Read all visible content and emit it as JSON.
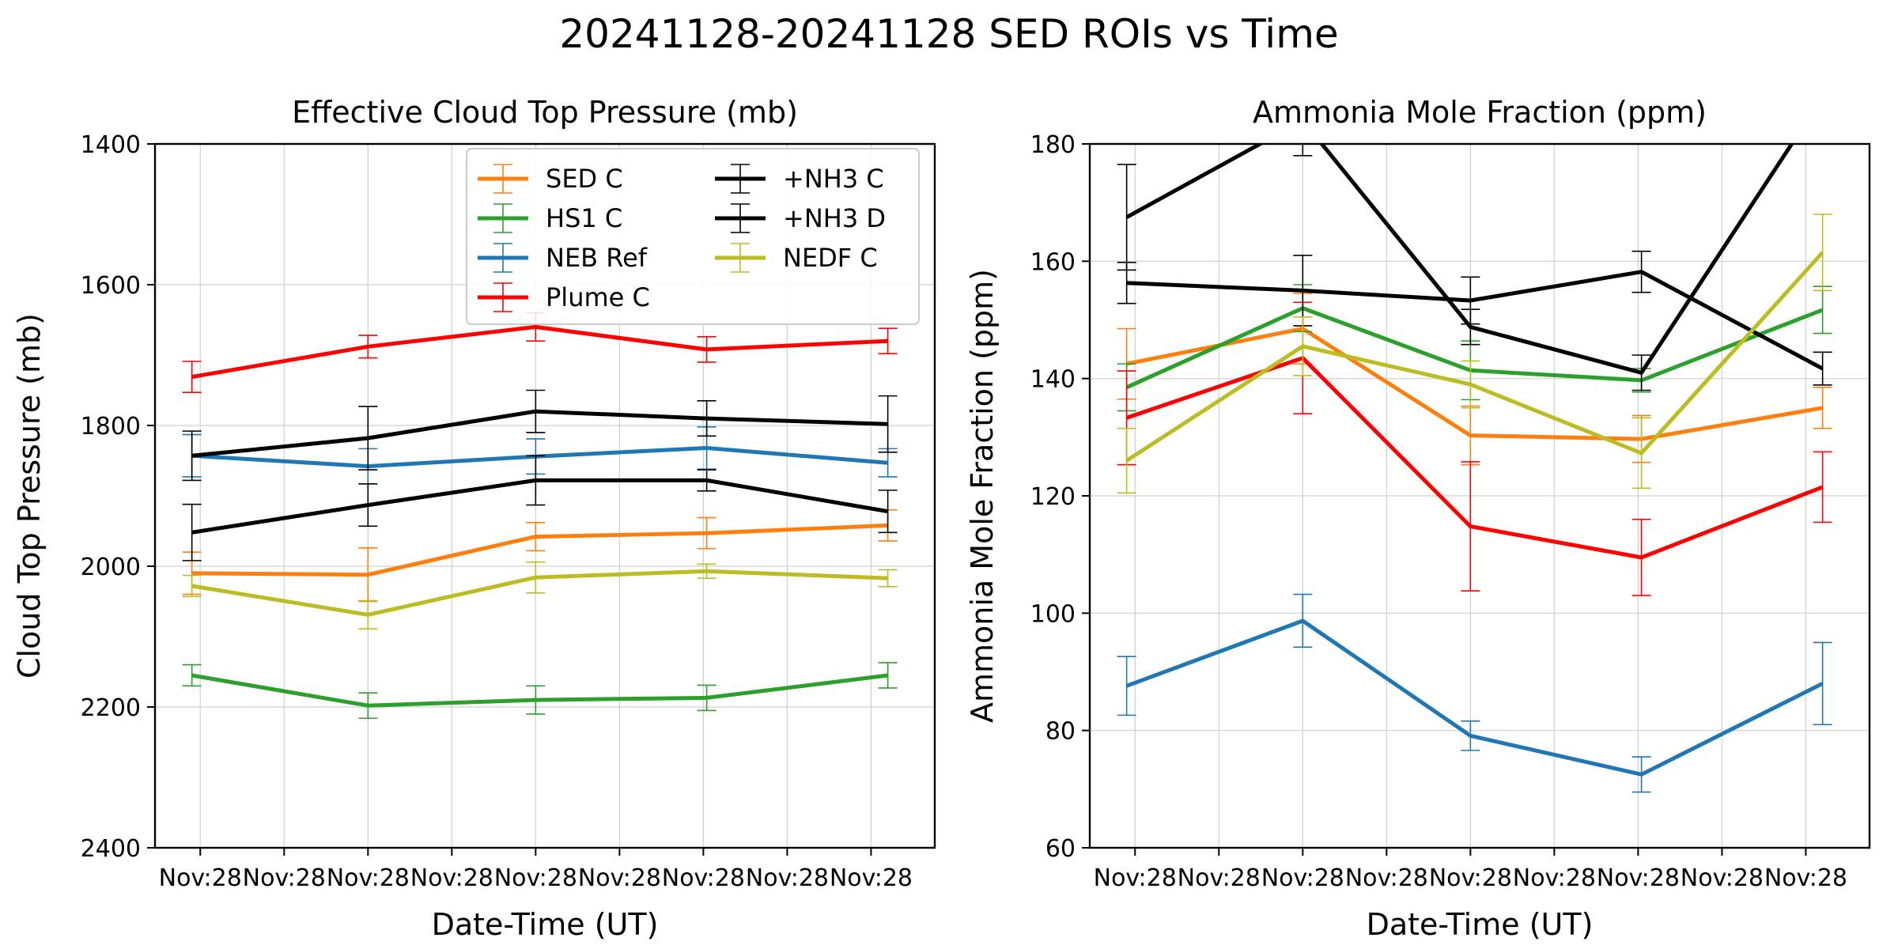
{
  "figure": {
    "title": "20241128-20241128 SED ROIs vs Time"
  },
  "legend": {
    "placement": "upper-right",
    "entries": [
      {
        "name": "SED C",
        "color": "#ff7f0e"
      },
      {
        "name": "HS1 C",
        "color": "#2ca02c"
      },
      {
        "name": "NEB Ref",
        "color": "#1f77b4"
      },
      {
        "name": "Plume C",
        "color": "#ff0000"
      },
      {
        "name": "+NH3 C",
        "color": "#000000"
      },
      {
        "name": "+NH3 D",
        "color": "#000000"
      },
      {
        "name": "NEDF C",
        "color": "#bcbd22"
      }
    ]
  },
  "chart_data": [
    {
      "type": "line",
      "title": "Effective Cloud Top Pressure (mb)",
      "xlabel": "Date-Time (UT)",
      "ylabel": "Cloud Top Pressure (mb)",
      "ylim": [
        2400,
        1400
      ],
      "y_inverted": true,
      "yticks": [
        1400,
        1600,
        1800,
        2000,
        2200,
        2400
      ],
      "xlim": [
        -0.27,
        4.38
      ],
      "xticks": [
        0,
        0.5,
        1,
        1.5,
        2,
        2.5,
        3,
        3.5,
        4
      ],
      "xticklabels": [
        "Nov:28",
        "Nov:28",
        "Nov:28",
        "Nov:28",
        "Nov:28",
        "Nov:28",
        "Nov:28",
        "Nov:28",
        "Nov:28"
      ],
      "grid": true,
      "series": [
        {
          "name": "SED C",
          "color": "#ff7f0e",
          "x": [
            -0.05,
            1.0,
            2.0,
            3.02,
            4.1
          ],
          "y": [
            2010,
            2012,
            1958,
            1953,
            1942
          ],
          "err": [
            30,
            38,
            20,
            22,
            22
          ]
        },
        {
          "name": "HS1 C",
          "color": "#2ca02c",
          "x": [
            -0.05,
            1.0,
            2.0,
            3.02,
            4.1
          ],
          "y": [
            2155,
            2198,
            2190,
            2187,
            2155
          ],
          "err": [
            15,
            18,
            20,
            18,
            18
          ]
        },
        {
          "name": "NEB Ref",
          "color": "#1f77b4",
          "x": [
            -0.05,
            1.0,
            2.0,
            3.02,
            4.1
          ],
          "y": [
            1843,
            1858,
            1844,
            1832,
            1853
          ],
          "err": [
            30,
            25,
            25,
            30,
            20
          ]
        },
        {
          "name": "Plume C",
          "color": "#ff0000",
          "x": [
            -0.05,
            1.0,
            2.0,
            3.02,
            4.1
          ],
          "y": [
            1731,
            1688,
            1660,
            1692,
            1680
          ],
          "err": [
            22,
            16,
            20,
            18,
            18
          ]
        },
        {
          "name": "+NH3 C",
          "color": "#000000",
          "x": [
            -0.05,
            1.0,
            2.0,
            3.02,
            4.1
          ],
          "y": [
            1952,
            1913,
            1878,
            1878,
            1922
          ],
          "err": [
            40,
            30,
            35,
            15,
            30
          ]
        },
        {
          "name": "+NH3 D",
          "color": "#000000",
          "x": [
            -0.05,
            1.0,
            2.0,
            3.02,
            4.1
          ],
          "y": [
            1843,
            1818,
            1780,
            1790,
            1798
          ],
          "err": [
            35,
            45,
            30,
            25,
            40
          ]
        },
        {
          "name": "NEDF C",
          "color": "#bcbd22",
          "x": [
            -0.05,
            1.0,
            2.0,
            3.02,
            4.1
          ],
          "y": [
            2028,
            2069,
            2016,
            2007,
            2017
          ],
          "err": [
            15,
            20,
            22,
            10,
            12
          ]
        }
      ]
    },
    {
      "type": "line",
      "title": "Ammonia Mole Fraction (ppm)",
      "xlabel": "Date-Time (UT)",
      "ylabel": "Ammonia Mole Fraction (ppm)",
      "ylim": [
        60,
        180
      ],
      "yticks": [
        60,
        80,
        100,
        120,
        140,
        160,
        180
      ],
      "xlim": [
        -0.27,
        4.38
      ],
      "xticks": [
        0,
        0.5,
        1,
        1.5,
        2,
        2.5,
        3,
        3.5,
        4
      ],
      "xticklabels": [
        "Nov:28",
        "Nov:28",
        "Nov:28",
        "Nov:28",
        "Nov:28",
        "Nov:28",
        "Nov:28",
        "Nov:28",
        "Nov:28"
      ],
      "grid": true,
      "series": [
        {
          "name": "SED C",
          "color": "#ff7f0e",
          "x": [
            -0.05,
            1.0,
            2.0,
            3.02,
            4.1
          ],
          "y": [
            142.5,
            148.5,
            130.3,
            129.7,
            135.0
          ],
          "err": [
            6,
            6,
            5,
            4,
            3.5
          ]
        },
        {
          "name": "HS1 C",
          "color": "#2ca02c",
          "x": [
            -0.05,
            1.0,
            2.0,
            3.02,
            4.1
          ],
          "y": [
            138.5,
            152.0,
            141.4,
            139.7,
            151.7
          ],
          "err": [
            4,
            4,
            5,
            2,
            4
          ]
        },
        {
          "name": "NEB Ref",
          "color": "#1f77b4",
          "x": [
            -0.05,
            1.0,
            2.0,
            3.02,
            4.1
          ],
          "y": [
            87.6,
            98.7,
            79.1,
            72.5,
            88.0
          ],
          "err": [
            5,
            4.5,
            2.5,
            3,
            7
          ]
        },
        {
          "name": "Plume C",
          "color": "#ff0000",
          "x": [
            -0.05,
            1.0,
            2.0,
            3.02,
            4.1
          ],
          "y": [
            133.3,
            143.5,
            114.8,
            109.5,
            121.5
          ],
          "err": [
            8,
            9.5,
            11,
            6.5,
            6
          ]
        },
        {
          "name": "+NH3 C",
          "color": "#000000",
          "x": [
            -0.05,
            1.0,
            2.0,
            3.02,
            4.1
          ],
          "y": [
            156.3,
            155.0,
            153.3,
            158.2,
            141.7
          ],
          "err": [
            3.5,
            6,
            4,
            3.5,
            2.8
          ]
        },
        {
          "name": "+NH3 D",
          "color": "#000000",
          "x": [
            -0.05,
            1.0,
            2.0,
            3.02,
            4.1
          ],
          "y": [
            167.5,
            184.0,
            148.8,
            141.0,
            188.0
          ],
          "err": [
            9,
            6,
            3,
            3,
            3
          ]
        },
        {
          "name": "NEDF C",
          "color": "#bcbd22",
          "x": [
            -0.05,
            1.0,
            2.0,
            3.02,
            4.1
          ],
          "y": [
            126.0,
            145.5,
            139.0,
            127.3,
            161.5
          ],
          "err": [
            5.5,
            5,
            4,
            6,
            6.5
          ]
        }
      ]
    }
  ]
}
